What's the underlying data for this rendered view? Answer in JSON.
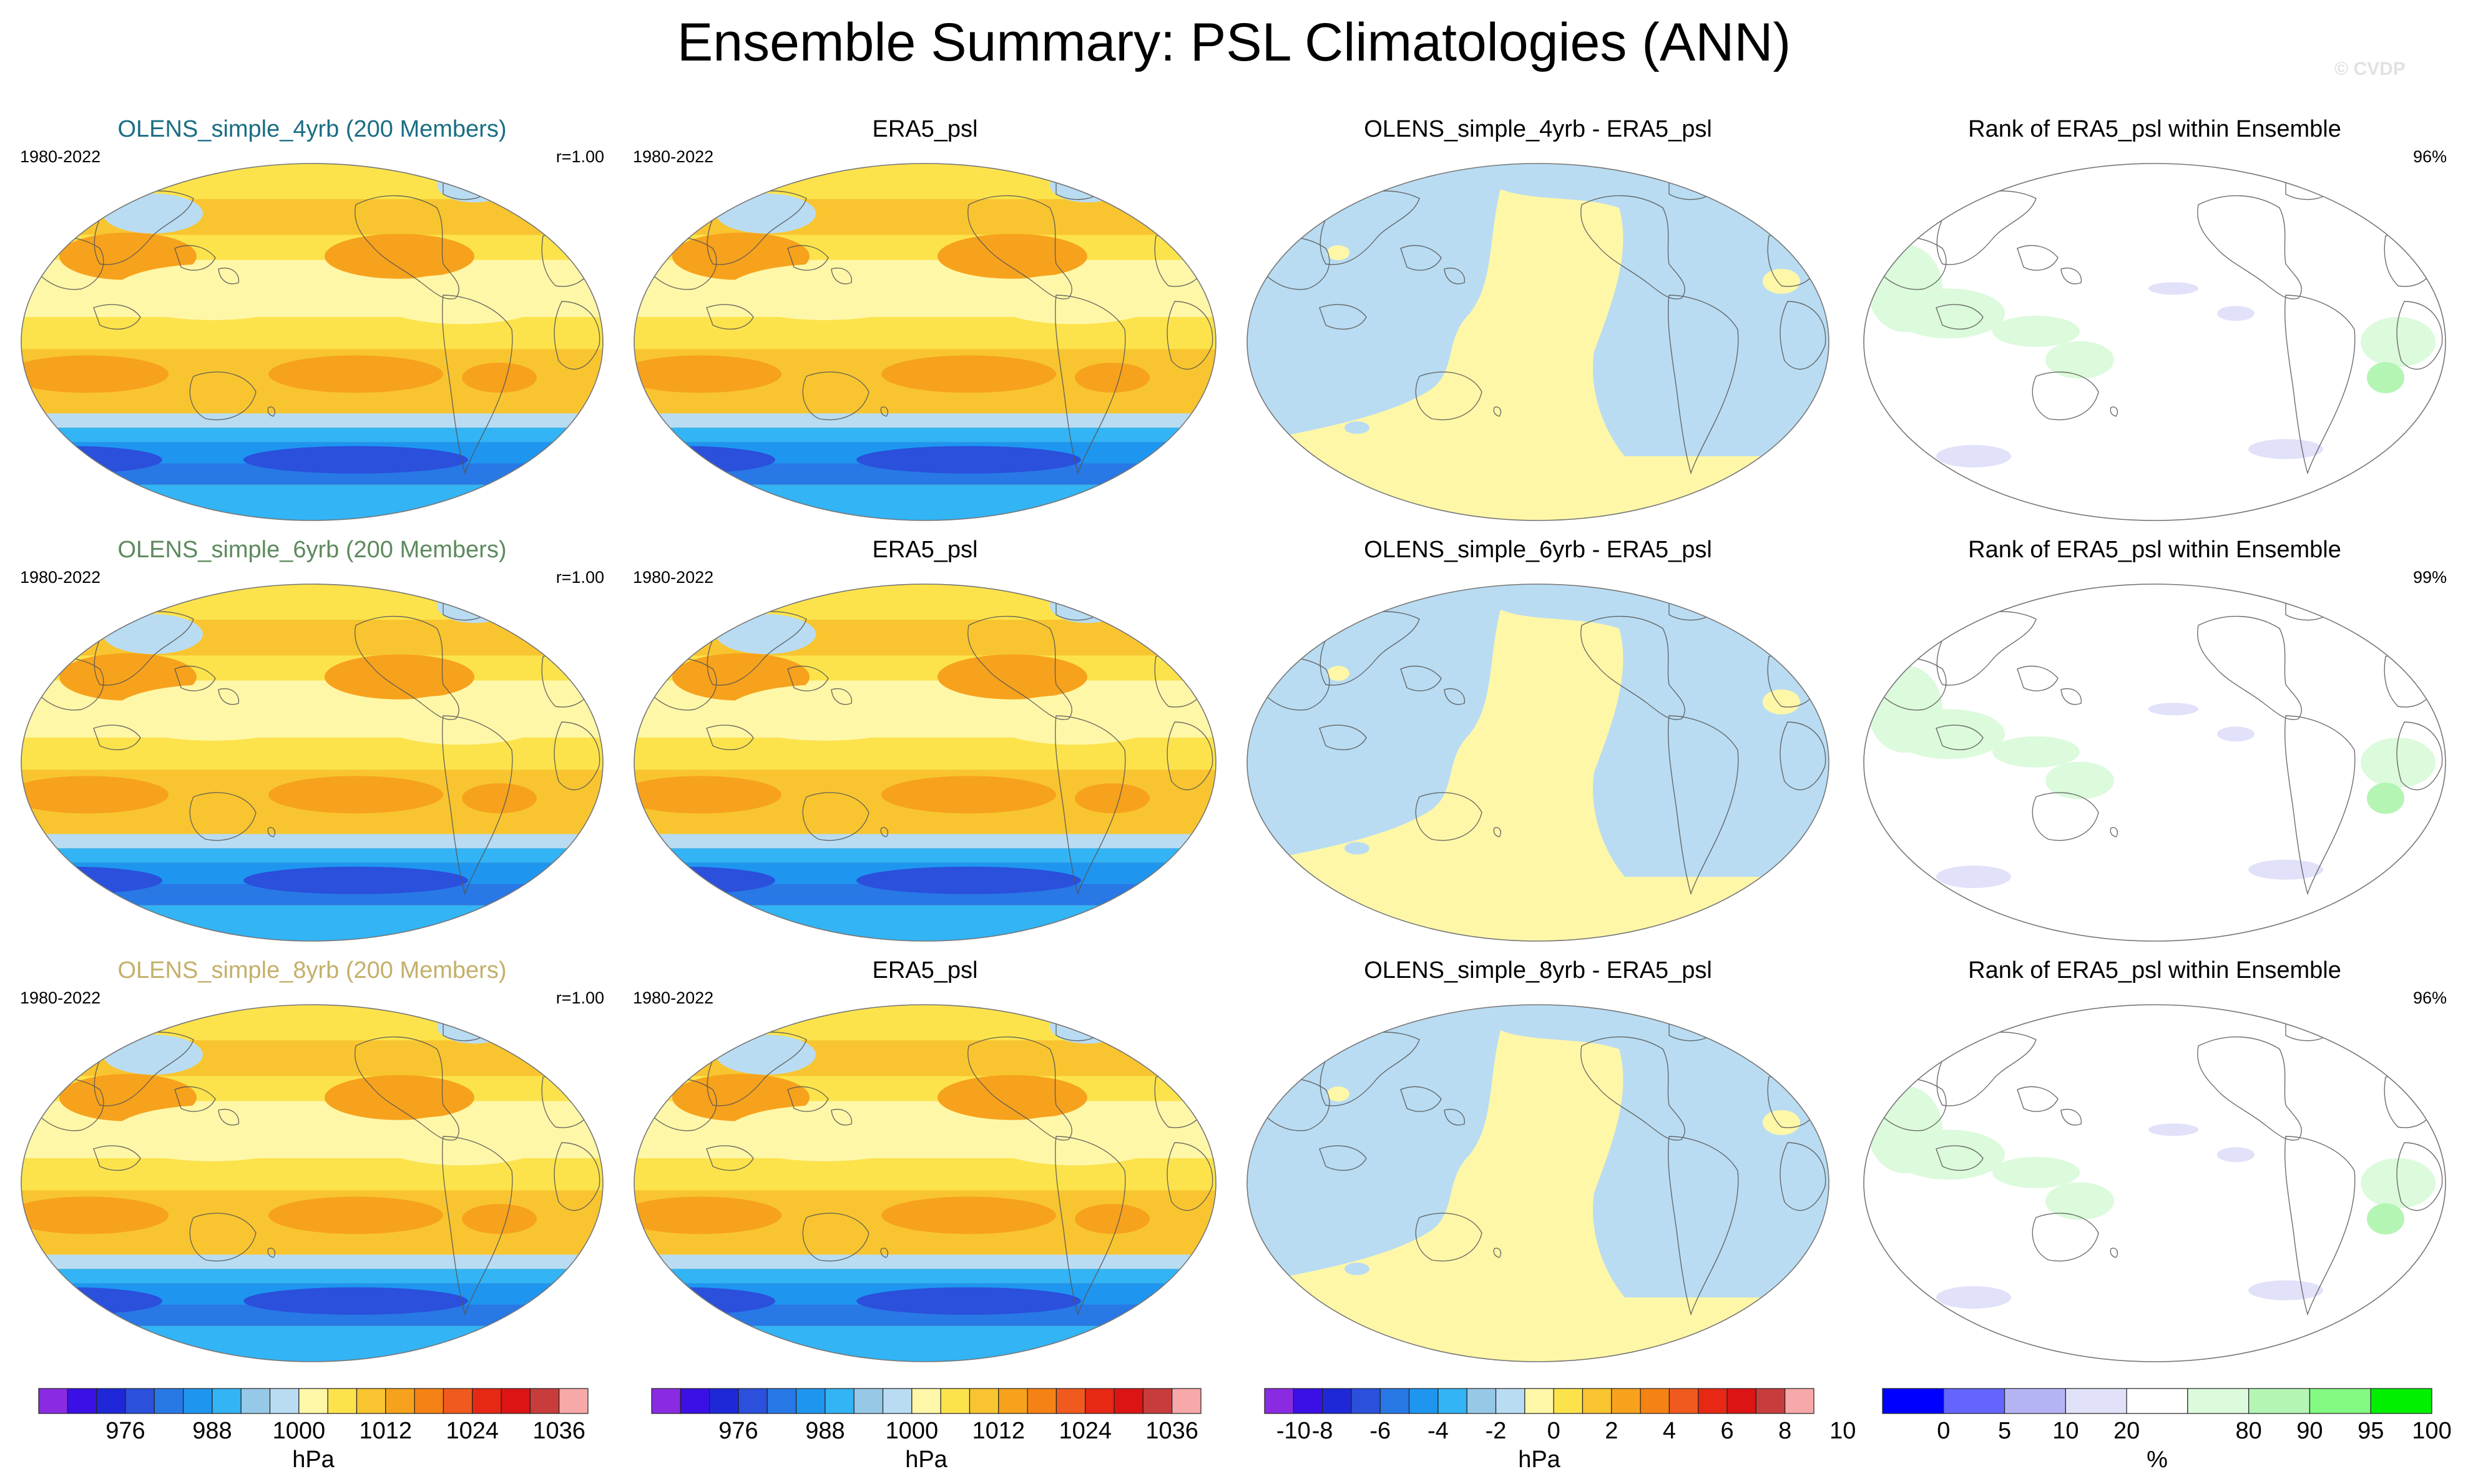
{
  "title": "Ensemble Summary: PSL Climatologies (ANN)",
  "watermark": "© CVDP",
  "colors": {
    "ens_title_1": "#1a6e84",
    "ens_title_2": "#5e8a5e",
    "ens_title_3": "#c4b06a"
  },
  "rows": [
    {
      "ens": {
        "title": "OLENS_simple_4yrb (200 Members)",
        "years": "1980-2022",
        "stat": "r=1.00"
      },
      "obs": {
        "title": "ERA5_psl",
        "years": "1980-2022"
      },
      "diff": {
        "title": "OLENS_simple_4yrb - ERA5_psl"
      },
      "rank": {
        "title": "Rank of ERA5_psl within Ensemble",
        "stat": "96%"
      }
    },
    {
      "ens": {
        "title": "OLENS_simple_6yrb (200 Members)",
        "years": "1980-2022",
        "stat": "r=1.00"
      },
      "obs": {
        "title": "ERA5_psl",
        "years": "1980-2022"
      },
      "diff": {
        "title": "OLENS_simple_6yrb - ERA5_psl"
      },
      "rank": {
        "title": "Rank of ERA5_psl within Ensemble",
        "stat": "99%"
      }
    },
    {
      "ens": {
        "title": "OLENS_simple_8yrb (200 Members)",
        "years": "1980-2022",
        "stat": "r=1.00"
      },
      "obs": {
        "title": "ERA5_psl",
        "years": "1980-2022"
      },
      "diff": {
        "title": "OLENS_simple_8yrb - ERA5_psl"
      },
      "rank": {
        "title": "Rank of ERA5_psl within Ensemble",
        "stat": "96%"
      }
    }
  ],
  "colorbars": [
    {
      "unit": "hPa",
      "colors": [
        "#8a2be2",
        "#3a10e6",
        "#1e28d8",
        "#2a50dc",
        "#2878e6",
        "#1e96f0",
        "#32b4f5",
        "#96c8e8",
        "#b9dcf2",
        "#fff7a8",
        "#fce34c",
        "#f8c530",
        "#f7a21c",
        "#f58214",
        "#f05a1e",
        "#e62814",
        "#dc1414",
        "#c83c3c",
        "#f7a8a8"
      ],
      "ticks": [
        {
          "index": 3,
          "label": "976"
        },
        {
          "index": 6,
          "label": "988"
        },
        {
          "index": 9,
          "label": "1000"
        },
        {
          "index": 12,
          "label": "1012"
        },
        {
          "index": 15,
          "label": "1024"
        },
        {
          "index": 18,
          "label": "1036"
        }
      ]
    },
    {
      "unit": "hPa",
      "colors": [
        "#8a2be2",
        "#3a10e6",
        "#1e28d8",
        "#2a50dc",
        "#2878e6",
        "#1e96f0",
        "#32b4f5",
        "#96c8e8",
        "#b9dcf2",
        "#fff7a8",
        "#fce34c",
        "#f8c530",
        "#f7a21c",
        "#f58214",
        "#f05a1e",
        "#e62814",
        "#dc1414",
        "#c83c3c",
        "#f7a8a8"
      ],
      "ticks": [
        {
          "index": 3,
          "label": "976"
        },
        {
          "index": 6,
          "label": "988"
        },
        {
          "index": 9,
          "label": "1000"
        },
        {
          "index": 12,
          "label": "1012"
        },
        {
          "index": 15,
          "label": "1024"
        },
        {
          "index": 18,
          "label": "1036"
        }
      ]
    },
    {
      "unit": "hPa",
      "colors": [
        "#8a2be2",
        "#3a10e6",
        "#1e28d8",
        "#2a50dc",
        "#2878e6",
        "#1e96f0",
        "#32b4f5",
        "#96c8e8",
        "#b9dcf2",
        "#fff7a8",
        "#fce34c",
        "#f8c530",
        "#f7a21c",
        "#f58214",
        "#f05a1e",
        "#e62814",
        "#dc1414",
        "#c83c3c",
        "#f7a8a8"
      ],
      "ticks": [
        {
          "index": 1,
          "label": "-10"
        },
        {
          "index": 2,
          "label": "-8"
        },
        {
          "index": 4,
          "label": "-6"
        },
        {
          "index": 6,
          "label": "-4"
        },
        {
          "index": 8,
          "label": "-2"
        },
        {
          "index": 10,
          "label": "0"
        },
        {
          "index": 12,
          "label": "2"
        },
        {
          "index": 14,
          "label": "4"
        },
        {
          "index": 16,
          "label": "6"
        },
        {
          "index": 18,
          "label": "8"
        },
        {
          "index": 20,
          "label": "10"
        }
      ]
    },
    {
      "unit": "%",
      "colors": [
        "#0000ff",
        "#6464ff",
        "#b4b4f5",
        "#e1e1fa",
        "#ffffff",
        "#dcfadc",
        "#b4f5b4",
        "#82fa82",
        "#00f000"
      ],
      "ticks": [
        {
          "index": 1,
          "label": "0"
        },
        {
          "index": 2,
          "label": "5"
        },
        {
          "index": 3,
          "label": "10"
        },
        {
          "index": 4,
          "label": "20"
        },
        {
          "index": 6,
          "label": "80"
        },
        {
          "index": 7,
          "label": "90"
        },
        {
          "index": 8,
          "label": "95"
        },
        {
          "index": 9,
          "label": "100"
        }
      ]
    }
  ]
}
